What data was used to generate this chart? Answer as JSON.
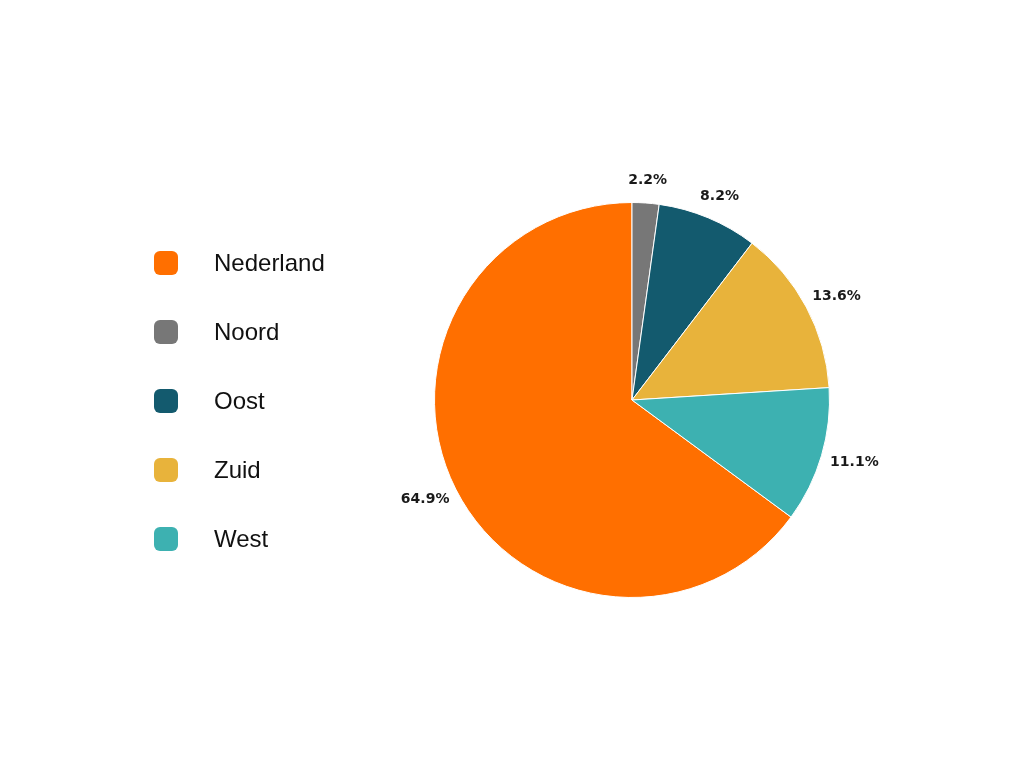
{
  "chart_data": {
    "type": "pie",
    "categories": [
      "Nederland",
      "Noord",
      "Oost",
      "Zuid",
      "West"
    ],
    "values": [
      64.9,
      2.2,
      8.2,
      13.6,
      11.1
    ],
    "colors": [
      "#ff6f00",
      "#777777",
      "#135a6e",
      "#e8b33b",
      "#3db1b1"
    ],
    "value_labels": [
      "64.9%",
      "2.2%",
      "8.2%",
      "13.6%",
      "11.1%"
    ],
    "legend": "left"
  }
}
